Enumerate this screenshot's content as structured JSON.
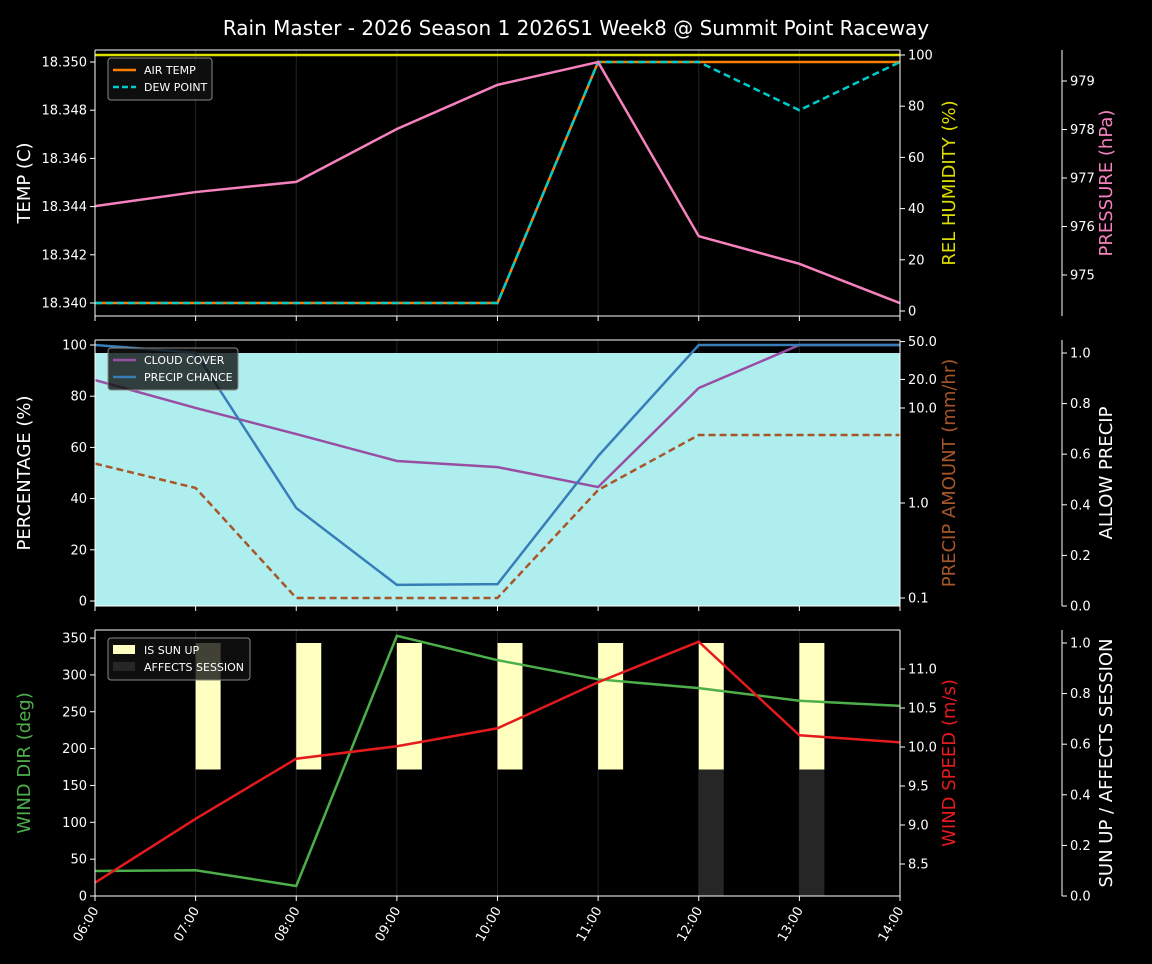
{
  "title": "Rain Master - 2026 Season 1 2026S1 Week8 @ Summit Point Raceway",
  "chart_data": [
    {
      "type": "line",
      "x": [
        "06:00",
        "07:00",
        "08:00",
        "09:00",
        "10:00",
        "11:00",
        "12:00",
        "13:00",
        "14:00"
      ],
      "ylabel": "TEMP (C)",
      "ylabel2": "REL HUMIDITY (%)",
      "ylabel3": "PRESSURE (hPa)",
      "ylim": [
        18.3396,
        18.3505
      ],
      "yticks": [
        "18.340",
        "18.342",
        "18.344",
        "18.346",
        "18.348",
        "18.350"
      ],
      "y2ticks": [
        "0",
        "20",
        "40",
        "60",
        "80",
        "100"
      ],
      "y3ticks": [
        "975",
        "976",
        "977",
        "978",
        "979"
      ],
      "legend": "top-left",
      "series": [
        {
          "name": "AIR TEMP",
          "axis": "temp",
          "color": "#ff7f00",
          "values": [
            18.34,
            18.34,
            18.34,
            18.34,
            18.34,
            18.35,
            18.35,
            18.35,
            18.35
          ]
        },
        {
          "name": "DEW POINT",
          "axis": "temp",
          "color": "#00cccc",
          "dashed": true,
          "values": [
            18.34,
            18.34,
            18.34,
            18.34,
            18.34,
            18.35,
            18.35,
            18.348,
            18.35
          ]
        },
        {
          "axis": "humidity",
          "color": "#dddd00",
          "values": [
            100,
            100,
            100,
            100,
            100,
            100,
            100,
            100,
            100
          ]
        },
        {
          "axis": "pressure",
          "color": "#f781bf",
          "values": [
            976.42,
            976.71,
            976.92,
            978.01,
            978.92,
            979.39,
            975.8,
            975.23,
            974.42
          ]
        }
      ]
    },
    {
      "type": "line",
      "x": [
        "06:00",
        "07:00",
        "08:00",
        "09:00",
        "10:00",
        "11:00",
        "12:00",
        "13:00",
        "14:00"
      ],
      "ylabel": "PERCENTAGE (%)",
      "ylabel2": "PRECIP AMOUNT (mm/hr)",
      "ylabel3": "ALLOW PRECIP",
      "yticks": [
        "0",
        "20",
        "40",
        "60",
        "80",
        "100"
      ],
      "y2ticks": [
        "0.1",
        "1.0",
        "10.0",
        "20.0",
        "50.0"
      ],
      "y2scale": "log",
      "y3ticks": [
        "0.0",
        "0.2",
        "0.4",
        "0.6",
        "0.8",
        "1.0"
      ],
      "legend": "top-left",
      "series": [
        {
          "axis": "allow",
          "color": "#afeeee",
          "fill": true,
          "values": [
            1,
            1,
            1,
            1,
            1,
            1,
            1,
            1,
            1
          ]
        },
        {
          "name": "CLOUD COVER",
          "axis": "pct",
          "color": "#984ea3",
          "values": [
            86.3,
            75.4,
            65.2,
            54.7,
            52.3,
            44.5,
            83.2,
            100,
            100
          ]
        },
        {
          "name": "PRECIP CHANCE",
          "axis": "pct",
          "color": "#377eb8",
          "values": [
            100,
            97,
            36.3,
            6.3,
            6.6,
            56.6,
            100,
            100,
            100
          ]
        },
        {
          "axis": "amount",
          "color": "#a65628",
          "dashed": true,
          "values": [
            2.6,
            1.44,
            0.1,
            0.1,
            0.1,
            1.37,
            5.2,
            5.2,
            5.2
          ]
        }
      ]
    },
    {
      "type": "line",
      "x": [
        "06:00",
        "07:00",
        "08:00",
        "09:00",
        "10:00",
        "11:00",
        "12:00",
        "13:00",
        "14:00"
      ],
      "ylabel": "WIND DIR (deg)",
      "ylabel2": "WIND SPEED (m/s)",
      "ylabel3": "SUN UP / AFFECTS SESSION",
      "yticks": [
        "0",
        "50",
        "100",
        "150",
        "200",
        "250",
        "300",
        "350"
      ],
      "y2ticks": [
        "8.5",
        "9.0",
        "9.5",
        "10.0",
        "10.5",
        "11.0"
      ],
      "y3ticks": [
        "0.0",
        "0.2",
        "0.4",
        "0.6",
        "0.8",
        "1.0"
      ],
      "legend": "top-left",
      "series": [
        {
          "name": "IS SUN UP",
          "axis": "sun",
          "type": "bar",
          "color": "#ffffc0",
          "values": [
            0,
            1,
            1,
            1,
            1,
            1,
            1,
            1,
            0
          ]
        },
        {
          "name": "AFFECTS SESSION",
          "axis": "sun",
          "type": "bar",
          "color": "#262626",
          "values": [
            0,
            0,
            0,
            0,
            0,
            0,
            1,
            1,
            0
          ]
        },
        {
          "axis": "dir",
          "color": "#4daf4a",
          "values": [
            34,
            35,
            13.6,
            353,
            320,
            294,
            282,
            265,
            258
          ]
        },
        {
          "axis": "speed",
          "color": "#e41a1c",
          "values": [
            8.26,
            9.08,
            9.85,
            10.01,
            10.24,
            10.83,
            11.35,
            10.15,
            10.06
          ]
        }
      ]
    }
  ]
}
